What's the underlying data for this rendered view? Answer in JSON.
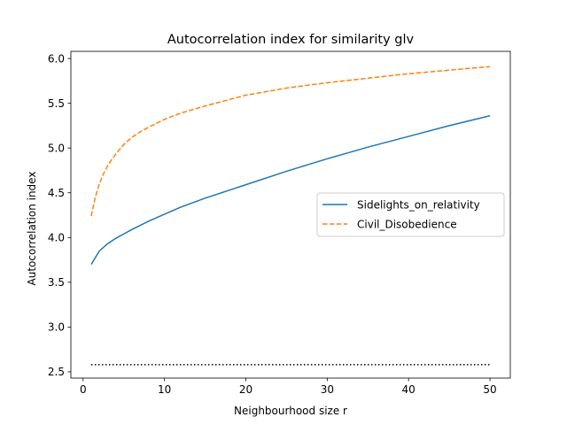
{
  "chart_data": {
    "type": "line",
    "title": "Autocorrelation index for similarity glv",
    "xlabel": "Neighbourhood size r",
    "ylabel": "Autocorrelation index",
    "xlim": [
      -1.5,
      52.5
    ],
    "ylim": [
      2.43,
      6.08
    ],
    "xticks": [
      0,
      10,
      20,
      30,
      40,
      50
    ],
    "xtick_labels": [
      "0",
      "10",
      "20",
      "30",
      "40",
      "50"
    ],
    "yticks": [
      2.5,
      3.0,
      3.5,
      4.0,
      4.5,
      5.0,
      5.5,
      6.0
    ],
    "ytick_labels": [
      "2.5",
      "3.0",
      "3.5",
      "4.0",
      "4.5",
      "5.0",
      "5.5",
      "6.0"
    ],
    "grid": false,
    "legend_position": "center-right",
    "series": [
      {
        "name": "Sidelights_on_relativity",
        "color": "#1f77b4",
        "style": "solid",
        "in_legend": true,
        "x": [
          1,
          2,
          3,
          4,
          5,
          6,
          8,
          10,
          12,
          15,
          18,
          20,
          25,
          30,
          35,
          40,
          45,
          50
        ],
        "y": [
          3.7,
          3.85,
          3.93,
          3.99,
          4.04,
          4.09,
          4.18,
          4.26,
          4.34,
          4.44,
          4.53,
          4.59,
          4.74,
          4.88,
          5.01,
          5.13,
          5.25,
          5.36
        ]
      },
      {
        "name": "Civil_Disobedience",
        "color": "#ff7f0e",
        "style": "dashed",
        "in_legend": true,
        "x": [
          1,
          1.5,
          2,
          2.5,
          3,
          3.5,
          4,
          5,
          6,
          7,
          8,
          10,
          12,
          15,
          20,
          25,
          30,
          35,
          40,
          45,
          50
        ],
        "y": [
          4.24,
          4.45,
          4.6,
          4.71,
          4.8,
          4.87,
          4.93,
          5.04,
          5.12,
          5.18,
          5.23,
          5.32,
          5.39,
          5.47,
          5.59,
          5.67,
          5.73,
          5.78,
          5.83,
          5.87,
          5.91
        ]
      },
      {
        "name": "",
        "color": "#000000",
        "style": "dotted",
        "in_legend": false,
        "x": [
          1,
          50
        ],
        "y": [
          2.58,
          2.58
        ]
      }
    ]
  }
}
